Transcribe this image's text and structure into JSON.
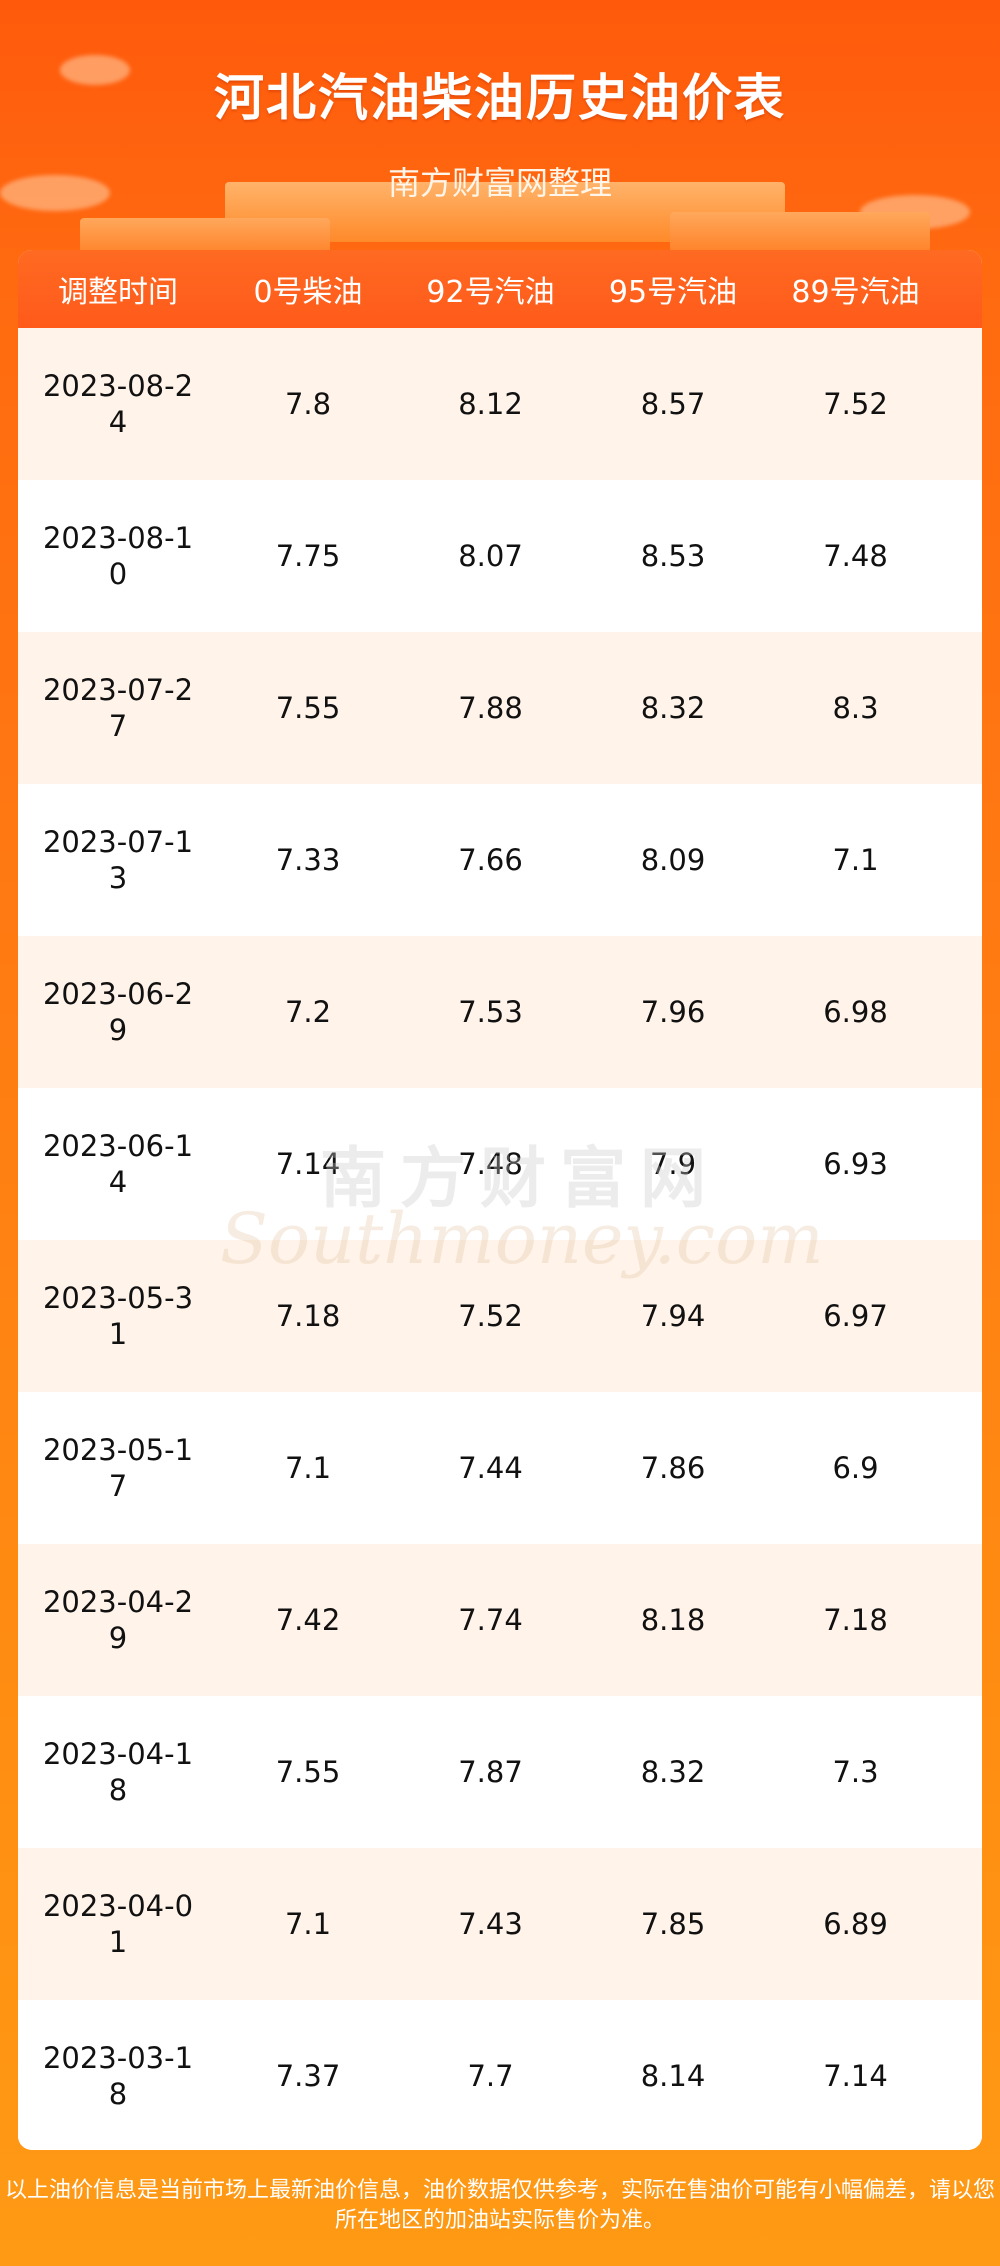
{
  "header": {
    "title": "河北汽油柴油历史油价表",
    "subtitle": "南方财富网整理"
  },
  "table": {
    "columns": [
      "调整时间",
      "0号柴油",
      "92号汽油",
      "95号汽油",
      "89号汽油"
    ],
    "rows": [
      {
        "date": "2023-08-24",
        "diesel0": "7.8",
        "gas92": "8.12",
        "gas95": "8.57",
        "gas89": "7.52"
      },
      {
        "date": "2023-08-10",
        "diesel0": "7.75",
        "gas92": "8.07",
        "gas95": "8.53",
        "gas89": "7.48"
      },
      {
        "date": "2023-07-27",
        "diesel0": "7.55",
        "gas92": "7.88",
        "gas95": "8.32",
        "gas89": "8.3"
      },
      {
        "date": "2023-07-13",
        "diesel0": "7.33",
        "gas92": "7.66",
        "gas95": "8.09",
        "gas89": "7.1"
      },
      {
        "date": "2023-06-29",
        "diesel0": "7.2",
        "gas92": "7.53",
        "gas95": "7.96",
        "gas89": "6.98"
      },
      {
        "date": "2023-06-14",
        "diesel0": "7.14",
        "gas92": "7.48",
        "gas95": "7.9",
        "gas89": "6.93"
      },
      {
        "date": "2023-05-31",
        "diesel0": "7.18",
        "gas92": "7.52",
        "gas95": "7.94",
        "gas89": "6.97"
      },
      {
        "date": "2023-05-17",
        "diesel0": "7.1",
        "gas92": "7.44",
        "gas95": "7.86",
        "gas89": "6.9"
      },
      {
        "date": "2023-04-29",
        "diesel0": "7.42",
        "gas92": "7.74",
        "gas95": "8.18",
        "gas89": "7.18"
      },
      {
        "date": "2023-04-18",
        "diesel0": "7.55",
        "gas92": "7.87",
        "gas95": "8.32",
        "gas89": "7.3"
      },
      {
        "date": "2023-04-01",
        "diesel0": "7.1",
        "gas92": "7.43",
        "gas95": "7.85",
        "gas89": "6.89"
      },
      {
        "date": "2023-03-18",
        "diesel0": "7.37",
        "gas92": "7.7",
        "gas95": "8.14",
        "gas89": "7.14"
      }
    ]
  },
  "watermark": {
    "cn": "南方财富网",
    "en": "Southmoney.com"
  },
  "footer": {
    "line1": "以上油价信息是当前市场上最新油价信息，油价数据仅供参考，实际在售油价可能有小幅偏差，请以您",
    "line2": "所在地区的加油站实际售价为准。"
  },
  "colors": {
    "background_top": "#ff5a0c",
    "background_bottom": "#ff9a14",
    "header_row": "#ff5a1a",
    "row_alt": "#fff3ea"
  }
}
